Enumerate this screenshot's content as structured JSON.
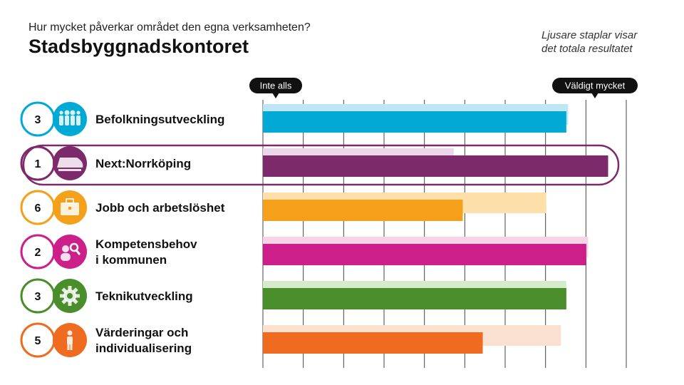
{
  "header": {
    "question": "Hur mycket påverkar området den egna verksamheten?",
    "unit": "Stadsbyggnadskontoret",
    "note_line1": "Ljusare staplar visar",
    "note_line2": "det totala resultatet"
  },
  "chart_data": {
    "type": "bar",
    "orientation": "horizontal",
    "scale_min_label": "Inte alls",
    "scale_max_label": "Väldigt mycket",
    "xlim": [
      0,
      1
    ],
    "grid": true,
    "highlighted_category": "Next:Norrköping",
    "categories": [
      {
        "rank": "3",
        "label_lines": [
          "Befolkningsutveckling"
        ],
        "icon": "people-group-icon",
        "color": "#00aad4",
        "light_color": "#bfe6f3",
        "value": 0.835,
        "total": 0.84
      },
      {
        "rank": "1",
        "label_lines": [
          "Next:Norrköping"
        ],
        "icon": "train-icon",
        "color": "#7d2a6b",
        "light_color": "#ecd6ea",
        "value": 0.95,
        "total": 0.525
      },
      {
        "rank": "6",
        "label_lines": [
          "Jobb och arbetslöshet"
        ],
        "icon": "briefcase-icon",
        "color": "#f5a01a",
        "light_color": "#fddfa9",
        "value": 0.55,
        "total": 0.78
      },
      {
        "rank": "2",
        "label_lines": [
          "Kompetensbehov",
          "i kommunen"
        ],
        "icon": "person-search-icon",
        "color": "#cc1f8a",
        "light_color": "#f6d3e6",
        "value": 0.89,
        "total": 0.895
      },
      {
        "rank": "3",
        "label_lines": [
          "Teknikutveckling"
        ],
        "icon": "gear-icon",
        "color": "#4a8e2c",
        "light_color": "#d6ebc9",
        "value": 0.835,
        "total": 0.835
      },
      {
        "rank": "5",
        "label_lines": [
          "Värderingar och",
          "individualisering"
        ],
        "icon": "person-icon",
        "color": "#ee6b1f",
        "light_color": "#f9e0cf",
        "value": 0.605,
        "total": 0.82
      }
    ]
  }
}
